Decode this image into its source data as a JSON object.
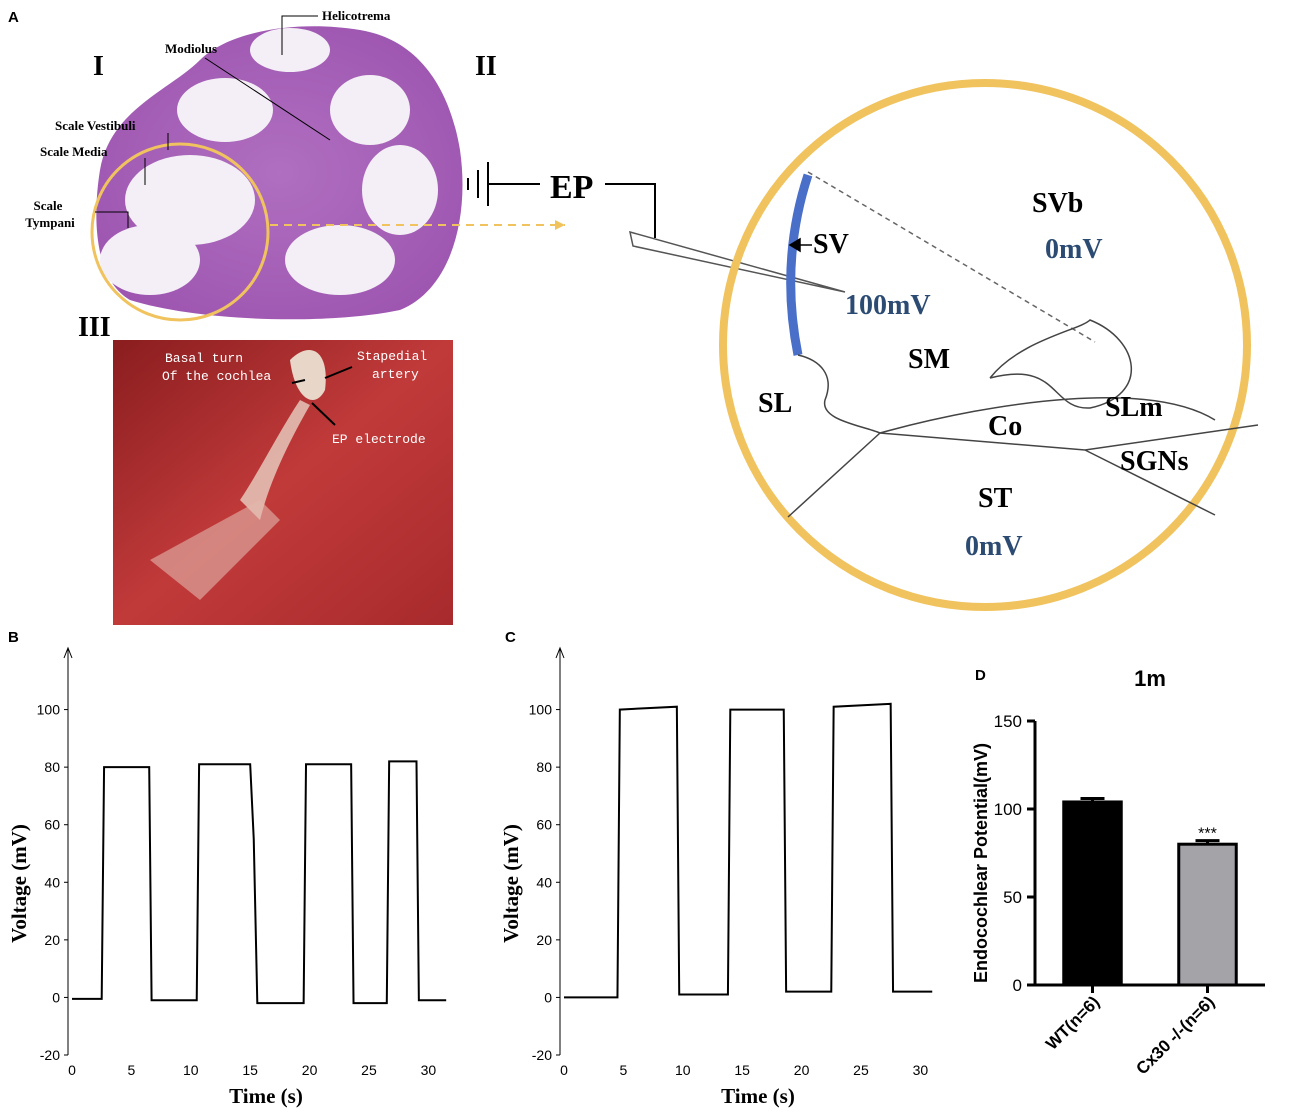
{
  "panels": [
    "A",
    "B",
    "C",
    "D"
  ],
  "histology": {
    "regions": [
      "I",
      "II",
      "III"
    ],
    "labels": [
      "Helicotrema",
      "Modiolus",
      "Scale Vestibuli",
      "Scale Media"
    ],
    "tympani": [
      "Scale",
      "Tympani"
    ]
  },
  "photo": {
    "labels": [
      "Basal turn",
      "Of the cochlea",
      "Stapedial",
      "artery",
      "EP electrode"
    ]
  },
  "schematic": {
    "electrode": "EP",
    "labels": [
      "SVb",
      "SV",
      "SM",
      "SL",
      "SLm",
      "Co",
      "SGNs",
      "ST"
    ],
    "potentials": [
      "0mV",
      "100mV",
      "0mV"
    ]
  },
  "chart_data": [
    {
      "type": "line",
      "x_label": "Time (s)",
      "y_label": "Voltage (mV)",
      "x": [
        0,
        2.5,
        2.7,
        6.5,
        6.7,
        10.5,
        10.7,
        15.0,
        15.3,
        15.6,
        19.5,
        19.7,
        23.5,
        23.7,
        26.5,
        26.7,
        29.0,
        29.2,
        31.5
      ],
      "values": [
        -0.5,
        -0.5,
        80,
        80,
        -1,
        -1,
        81,
        81,
        55,
        -2,
        -2,
        81,
        81,
        -2,
        -2,
        82,
        82,
        -1,
        -1
      ],
      "color": "#000000",
      "xlim": [
        0,
        33
      ],
      "xticks": [
        0,
        5,
        10,
        15,
        20,
        25,
        30
      ],
      "ylim": [
        -20,
        120
      ],
      "yticks": [
        -20,
        0,
        20,
        40,
        60,
        80,
        100
      ]
    },
    {
      "type": "line",
      "x_label": "Time (s)",
      "y_label": "Voltage (mV)",
      "x": [
        0,
        4.5,
        4.7,
        9.5,
        9.7,
        13.8,
        14.0,
        18.5,
        18.7,
        22.5,
        22.7,
        27.5,
        27.7,
        31
      ],
      "values": [
        0,
        0,
        100,
        101,
        1,
        1,
        100,
        100,
        2,
        2,
        101,
        102,
        2,
        2
      ],
      "color": "#000000",
      "xlim": [
        0,
        33
      ],
      "xticks": [
        0,
        5,
        10,
        15,
        20,
        25,
        30
      ],
      "ylim": [
        -20,
        120
      ],
      "yticks": [
        -20,
        0,
        20,
        40,
        60,
        80,
        100
      ]
    },
    {
      "type": "bar",
      "title": "1m",
      "y_label": "Endocochlear Potential(mV)",
      "categories": [
        "WT(n=6)",
        "Cx30 -/-(n=6)"
      ],
      "values": [
        104,
        80
      ],
      "errors": [
        2,
        2
      ],
      "colors": [
        "#000000",
        "#a3a3a8"
      ],
      "annotation": "***",
      "ylim": [
        0,
        150
      ],
      "yticks": [
        0,
        50,
        100,
        150
      ]
    }
  ]
}
